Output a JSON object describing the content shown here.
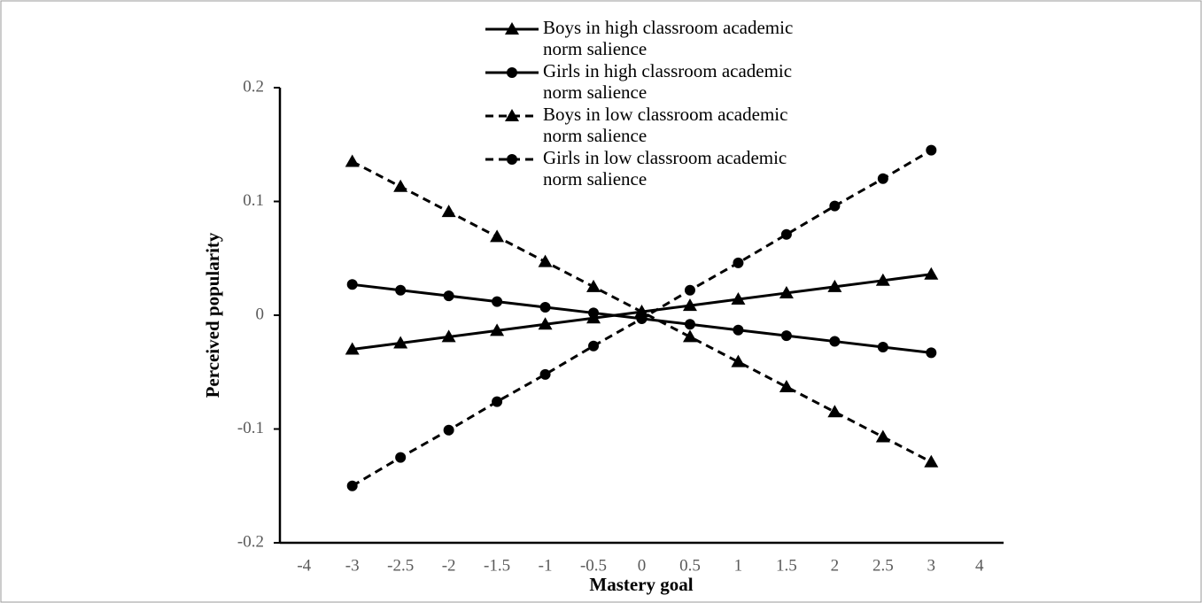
{
  "chart_data": {
    "type": "line",
    "x_label": "Mastery goal",
    "y_label": "Perceived popularity",
    "categories": [
      "-4",
      "-3",
      "-2.5",
      "-2",
      "-1.5",
      "-1",
      "-0.5",
      "0",
      "0.5",
      "1",
      "1.5",
      "2",
      "2.5",
      "3",
      "4"
    ],
    "ylim": [
      -0.2,
      0.2
    ],
    "yticks": [
      0.2,
      0.1,
      0,
      -0.1,
      -0.2
    ],
    "series": [
      {
        "name": "Boys in high classroom academic norm salience",
        "color": "#000000",
        "marker": "triangle",
        "dashed": false,
        "values": [
          null,
          -0.03,
          -0.0245,
          -0.019,
          -0.0135,
          -0.008,
          -0.0025,
          0.003,
          0.0085,
          0.014,
          0.0195,
          0.025,
          0.0305,
          0.036,
          null
        ]
      },
      {
        "name": "Girls in high classroom academic norm salience",
        "color": "#000000",
        "marker": "circle",
        "dashed": false,
        "values": [
          null,
          0.027,
          0.022,
          0.017,
          0.012,
          0.007,
          0.002,
          -0.003,
          -0.008,
          -0.013,
          -0.018,
          -0.023,
          -0.028,
          -0.033,
          null
        ]
      },
      {
        "name": "Boys in low classroom academic norm salience",
        "color": "#000000",
        "marker": "triangle",
        "dashed": true,
        "values": [
          null,
          0.135,
          0.113,
          0.091,
          0.069,
          0.047,
          0.025,
          0.003,
          -0.019,
          -0.041,
          -0.063,
          -0.085,
          -0.107,
          -0.129,
          null
        ]
      },
      {
        "name": "Girls in low classroom academic norm salience",
        "color": "#000000",
        "marker": "circle",
        "dashed": true,
        "values": [
          null,
          -0.15,
          -0.125,
          -0.101,
          -0.076,
          -0.052,
          -0.027,
          -0.003,
          0.022,
          0.046,
          0.071,
          0.096,
          0.12,
          0.145,
          null
        ]
      }
    ]
  }
}
